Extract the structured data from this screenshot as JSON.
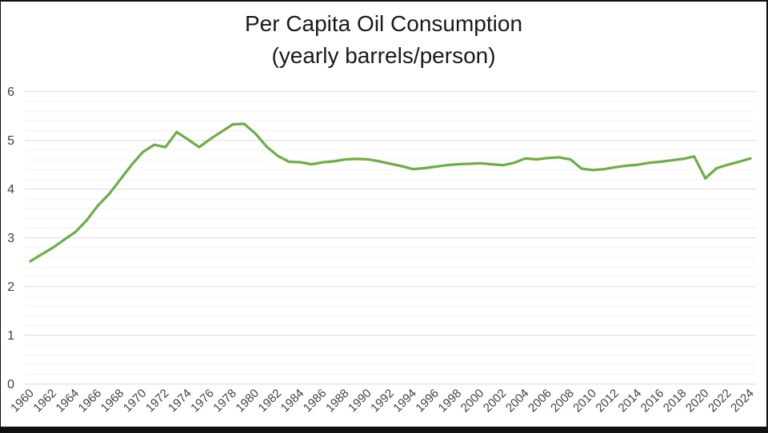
{
  "window": {
    "background_color": "#FFFFFF",
    "border_color": "#111111"
  },
  "chart": {
    "title_line1": "Per Capita Oil Consumption",
    "title_line2": "(yearly barrels/person)"
  },
  "chart_data": {
    "type": "line",
    "title": "Per Capita Oil Consumption (yearly barrels/person)",
    "xlabel": "",
    "ylabel": "",
    "x": [
      1960,
      1961,
      1962,
      1963,
      1964,
      1965,
      1966,
      1967,
      1968,
      1969,
      1970,
      1971,
      1972,
      1973,
      1974,
      1975,
      1976,
      1977,
      1978,
      1979,
      1980,
      1981,
      1982,
      1983,
      1984,
      1985,
      1986,
      1987,
      1988,
      1989,
      1990,
      1991,
      1992,
      1993,
      1994,
      1995,
      1996,
      1997,
      1998,
      1999,
      2000,
      2001,
      2002,
      2003,
      2004,
      2005,
      2006,
      2007,
      2008,
      2009,
      2010,
      2011,
      2012,
      2013,
      2014,
      2015,
      2016,
      2017,
      2018,
      2019,
      2020,
      2021,
      2022,
      2023,
      2024
    ],
    "values": [
      2.52,
      2.66,
      2.8,
      2.96,
      3.12,
      3.36,
      3.66,
      3.9,
      4.2,
      4.5,
      4.76,
      4.91,
      4.86,
      5.17,
      5.02,
      4.86,
      5.03,
      5.18,
      5.33,
      5.34,
      5.14,
      4.87,
      4.68,
      4.56,
      4.55,
      4.51,
      4.55,
      4.57,
      4.61,
      4.62,
      4.61,
      4.57,
      4.52,
      4.47,
      4.41,
      4.43,
      4.46,
      4.49,
      4.51,
      4.52,
      4.53,
      4.51,
      4.49,
      4.54,
      4.63,
      4.61,
      4.64,
      4.65,
      4.61,
      4.42,
      4.39,
      4.41,
      4.45,
      4.48,
      4.5,
      4.54,
      4.56,
      4.59,
      4.62,
      4.67,
      4.22,
      4.43,
      4.5,
      4.56,
      4.63
    ],
    "ylim": [
      0,
      6
    ],
    "y_tick_labels": [
      "0",
      "1",
      "2",
      "3",
      "4",
      "5",
      "6"
    ],
    "x_tick_labels": [
      "1960",
      "1962",
      "1964",
      "1966",
      "1968",
      "1970",
      "1972",
      "1974",
      "1976",
      "1978",
      "1980",
      "1982",
      "1984",
      "1986",
      "1988",
      "1990",
      "1992",
      "1994",
      "1996",
      "1998",
      "2000",
      "2002",
      "2004",
      "2006",
      "2008",
      "2010",
      "2012",
      "2014",
      "2016",
      "2018",
      "2020",
      "2022",
      "2024"
    ],
    "grid": {
      "major": true,
      "minor": true,
      "minor_step": 0.2,
      "major_color": "#D9D9D9",
      "minor_color": "#F2F2F2"
    },
    "legend_position": "none",
    "series_color": "#70AD47",
    "line_width": 3.25,
    "markers": false
  }
}
